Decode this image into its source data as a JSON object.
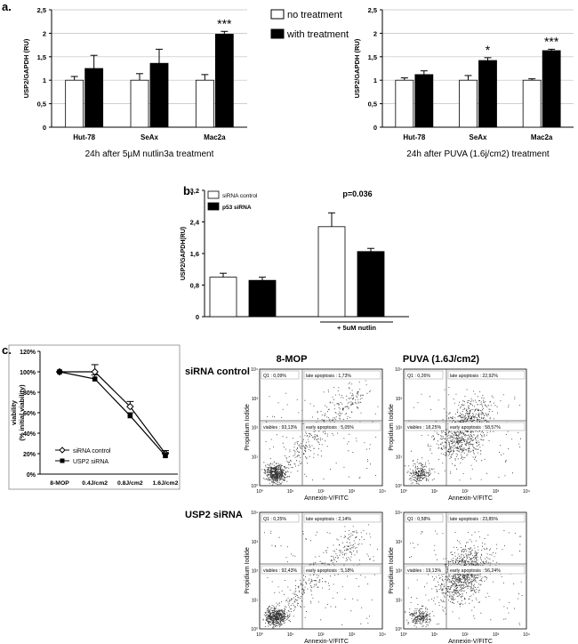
{
  "panel_labels": {
    "a": "a.",
    "b": "b.",
    "c": "c."
  },
  "legend_a": {
    "no_treatment": "no treatment",
    "with_treatment": "with treatment"
  },
  "colors": {
    "no_treatment": "#ffffff",
    "with_treatment": "#000000",
    "axis": "#000000",
    "grid": "#bfbfbf"
  },
  "chart_data": [
    {
      "id": "a-left",
      "type": "bar",
      "caption": "24h after 5µM nutlin3a treatment",
      "ylabel": "USP2/GAPDH (RU)",
      "ylim": [
        0,
        2.5
      ],
      "yticks": [
        "0",
        "0,5",
        "1",
        "1,5",
        "2",
        "2,5"
      ],
      "categories": [
        "Hut-78",
        "SeAx",
        "Mac2a"
      ],
      "series": [
        {
          "name": "no treatment",
          "values": [
            1.0,
            1.0,
            1.0
          ],
          "errors": [
            0.08,
            0.14,
            0.12
          ]
        },
        {
          "name": "with treatment",
          "values": [
            1.25,
            1.36,
            1.98
          ],
          "errors": [
            0.28,
            0.3,
            0.06
          ]
        }
      ],
      "annotations": [
        "",
        "",
        "***"
      ],
      "grid": true
    },
    {
      "id": "a-right",
      "type": "bar",
      "caption": "24h after PUVA (1.6j/cm2) treatment",
      "ylabel": "USP2/GAPDH (RU)",
      "ylim": [
        0,
        2.5
      ],
      "yticks": [
        "0",
        "0,5",
        "1",
        "1,5",
        "2",
        "2,5"
      ],
      "categories": [
        "Hut-78",
        "SeAx",
        "Mac2a"
      ],
      "series": [
        {
          "name": "no treatment",
          "values": [
            1.0,
            1.0,
            1.0
          ],
          "errors": [
            0.05,
            0.1,
            0.03
          ]
        },
        {
          "name": "with treatment",
          "values": [
            1.12,
            1.42,
            1.63
          ],
          "errors": [
            0.08,
            0.06,
            0.03
          ]
        }
      ],
      "annotations": [
        "",
        "*",
        "***"
      ],
      "grid": true
    },
    {
      "id": "b",
      "type": "bar",
      "ylabel": "USP2/GAPDH(RU)",
      "ylim": [
        0,
        3.2
      ],
      "yticks": [
        "0",
        "0,8",
        "1,6",
        "2,4",
        "3,2"
      ],
      "groups": [
        "",
        "+ 5uM nutlin"
      ],
      "series": [
        {
          "name": "siRNA control",
          "values": [
            1.0,
            2.28
          ],
          "errors": [
            0.1,
            0.35
          ]
        },
        {
          "name": "p53 siRNA",
          "values": [
            0.92,
            1.65
          ],
          "errors": [
            0.08,
            0.08
          ]
        }
      ],
      "annotation": "p=0.036",
      "legend": [
        "siRNA control",
        "p53 siRNA"
      ]
    },
    {
      "id": "c-line",
      "type": "line",
      "ylabel": "viability\n(% initial viability)",
      "ylim": [
        0,
        120
      ],
      "yticks": [
        "0%",
        "20%",
        "40%",
        "60%",
        "80%",
        "100%",
        "120%"
      ],
      "categories": [
        "8-MOP",
        "0.4J/cm2",
        "0.8J/cm2",
        "1.6J/cm2"
      ],
      "series": [
        {
          "name": "siRNA control",
          "values": [
            100,
            100,
            66,
            20
          ],
          "errors": [
            0,
            7,
            5,
            3
          ],
          "marker": "diamond-open"
        },
        {
          "name": "USP2 siRNA",
          "values": [
            100,
            93,
            57,
            18
          ],
          "errors": [
            0,
            4,
            3,
            3
          ],
          "marker": "square-filled"
        }
      ],
      "legend_position": "bottom-left"
    },
    {
      "id": "c-flow",
      "type": "scatter",
      "column_titles": [
        "8-MOP",
        "PUVA (1.6J/cm2)"
      ],
      "row_titles": [
        "siRNA control",
        "USP2 siRNA"
      ],
      "xlabel": "Annexin-V/FITC",
      "ylabel": "Propidium Iodide",
      "tick_labels": [
        "10⁰",
        "10¹",
        "10²",
        "10³",
        "10⁴"
      ],
      "plots": [
        {
          "row": 0,
          "col": 0,
          "q1": "Q1 : 0,09%",
          "late": "late apoptosis : 1,73%",
          "viables": "viables : 93,13%",
          "early": "early apoptosis : 5,05%"
        },
        {
          "row": 0,
          "col": 1,
          "q1": "Q1 : 0,26%",
          "late": "late apoptosis : 22,92%",
          "viables": "viables : 18,25%",
          "early": "early apoptosis : 58,57%"
        },
        {
          "row": 1,
          "col": 0,
          "q1": "Q1 : 0,25%",
          "late": "late apoptosis : 2,14%",
          "viables": "viables : 92,43%",
          "early": "early apoptosis : 5,18%"
        },
        {
          "row": 1,
          "col": 1,
          "q1": "Q1 : 0,58%",
          "late": "late apoptosis : 23,85%",
          "viables": "viables : 19,13%",
          "early": "early apoptosis : 56,24%"
        }
      ]
    }
  ]
}
